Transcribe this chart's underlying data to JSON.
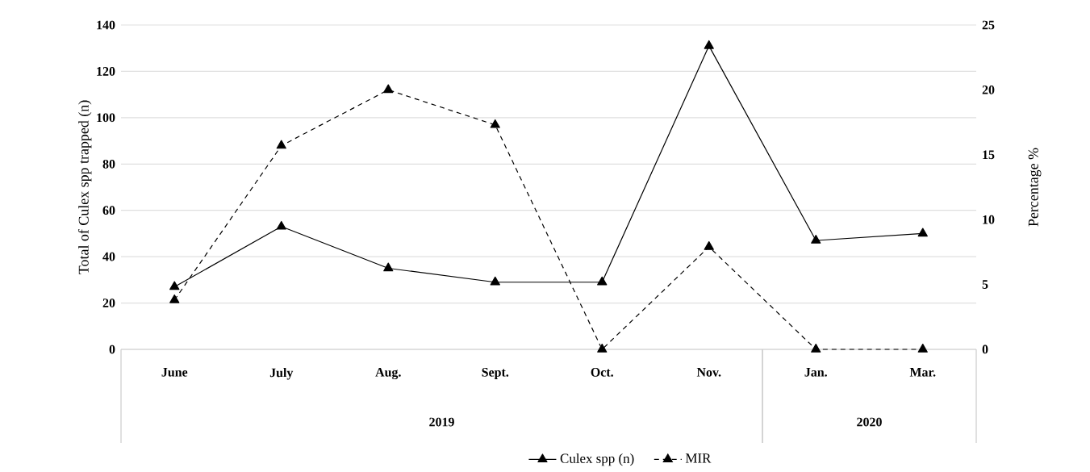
{
  "chart_data": {
    "type": "line",
    "ylabel": "Total of Culex spp trapped (n)",
    "y2label": "Percentage %",
    "categories": [
      "June",
      "July",
      "Aug.",
      "Sept.",
      "Oct.",
      "Nov.",
      "Jan.",
      "Mar."
    ],
    "series": [
      {
        "name": "Culex spp (n)",
        "color": "#000000",
        "line_style": "solid",
        "values": [
          27,
          53,
          35,
          29,
          29,
          131,
          47,
          50
        ]
      },
      {
        "name": "MIR",
        "color": "#000000",
        "line_style": "dashed",
        "axis": "y2",
        "values": [
          3.8,
          15.7,
          20.0,
          17.3,
          0,
          7.9,
          0,
          0
        ]
      }
    ],
    "ylim": [
      0,
      140
    ],
    "yticks": [
      0,
      20,
      40,
      60,
      80,
      100,
      120,
      140
    ],
    "y2lim": [
      0,
      25
    ],
    "y2ticks": [
      0,
      5,
      10,
      15,
      20,
      25
    ],
    "annotations": [
      "2019",
      "2020"
    ],
    "grid": "y",
    "legend": "bottom",
    "marker": "triangle"
  }
}
